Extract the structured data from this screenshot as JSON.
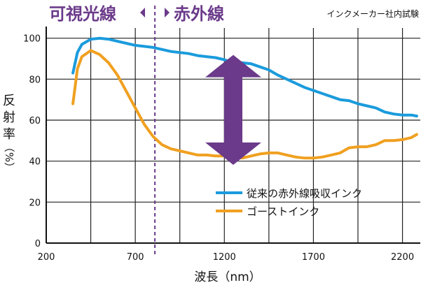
{
  "chart_data": {
    "type": "line",
    "source_note": "インクメーカー社内試験",
    "region_labels": {
      "visible": "可視光線",
      "infrared": "赤外線"
    },
    "region_boundary_x": 810,
    "xlabel": "波長（nm）",
    "ylabel_chars": [
      "反",
      "射",
      "率",
      "（%）"
    ],
    "xlim": [
      200,
      2300
    ],
    "ylim": [
      0,
      105
    ],
    "x_ticks": [
      200,
      700,
      1200,
      1700,
      2200
    ],
    "x_gridlines": [
      450,
      700,
      950,
      1200,
      1450,
      1700,
      1950,
      2200
    ],
    "y_ticks": [
      0,
      20,
      40,
      60,
      80,
      100
    ],
    "grid": true,
    "legend_position": "bottom-right",
    "annotation": "double-headed arrow between series near 1250 nm",
    "arrow_x": 1250,
    "arrow_y_range": [
      45,
      85
    ],
    "series": [
      {
        "name": "従来の赤外線吸収インク",
        "color": "#1a9bdc",
        "x": [
          350,
          375,
          400,
          450,
          500,
          550,
          600,
          650,
          700,
          750,
          800,
          850,
          900,
          950,
          1000,
          1050,
          1100,
          1150,
          1200,
          1250,
          1300,
          1350,
          1400,
          1450,
          1500,
          1550,
          1600,
          1650,
          1700,
          1750,
          1800,
          1850,
          1900,
          1950,
          2000,
          2050,
          2100,
          2150,
          2200,
          2250,
          2280
        ],
        "y": [
          83,
          93,
          97,
          99.5,
          100,
          99.5,
          98.5,
          97.5,
          96.5,
          96,
          95.5,
          94.5,
          93.5,
          93,
          92.5,
          91.5,
          91,
          90.5,
          89.5,
          88,
          88,
          87.5,
          86,
          84.5,
          82,
          80,
          78,
          76,
          74.5,
          73,
          71.5,
          70,
          69.5,
          68,
          67,
          66,
          64,
          63,
          62.5,
          62.5,
          62
        ]
      },
      {
        "name": "ゴーストインク",
        "color": "#f0a020",
        "x": [
          350,
          375,
          400,
          450,
          500,
          550,
          600,
          650,
          700,
          750,
          800,
          850,
          900,
          950,
          1000,
          1050,
          1100,
          1150,
          1200,
          1250,
          1300,
          1350,
          1400,
          1450,
          1500,
          1550,
          1600,
          1650,
          1700,
          1750,
          1800,
          1850,
          1900,
          1950,
          2000,
          2050,
          2100,
          2150,
          2200,
          2250,
          2280
        ],
        "y": [
          68,
          85,
          91,
          94,
          92,
          88,
          82,
          74,
          66,
          58,
          52,
          48,
          46,
          45,
          44,
          43,
          43,
          42.5,
          42.5,
          42,
          41.5,
          42.5,
          43.5,
          44,
          44,
          43,
          42,
          41.5,
          41.5,
          42,
          43,
          44,
          46.5,
          47,
          47,
          48,
          50,
          50,
          50.5,
          51.5,
          53
        ]
      }
    ]
  }
}
